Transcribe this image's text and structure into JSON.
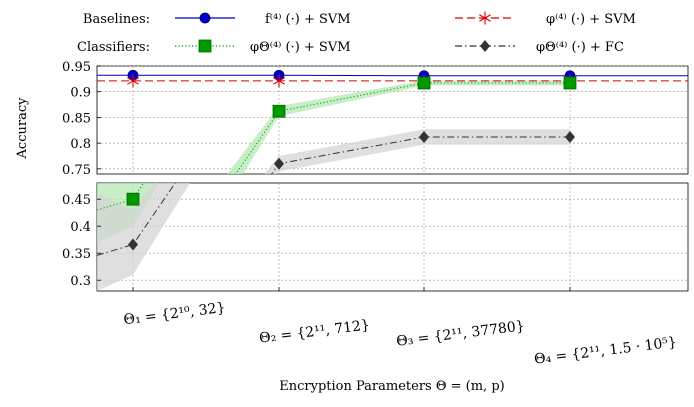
{
  "chart_data": {
    "type": "line",
    "ylabel": "Accuracy",
    "xlabel": "Encryption Parameters Θ = (m, p)",
    "legend": {
      "placement": "top",
      "row_labels": [
        "Baselines:",
        "Classifiers:"
      ],
      "entries": [
        {
          "series": 0,
          "label": "f⁽⁴⁾ (·) + SVM"
        },
        {
          "series": 1,
          "label": "φ⁽⁴⁾ (·) + SVM"
        },
        {
          "series": 2,
          "label": "φΘ⁽⁴⁾ (·) + SVM"
        },
        {
          "series": 3,
          "label": "φΘ⁽⁴⁾ (·) + FC"
        }
      ]
    },
    "categories": [
      "Θ₁ = {2¹⁰, 32}",
      "Θ₂ = {2¹¹, 712}",
      "Θ₃ = {2¹¹, 37780}",
      "Θ₄ = {2¹¹, 1.5 · 10⁵}"
    ],
    "axis_break": true,
    "upper_panel": {
      "ylim": [
        0.74,
        0.95
      ],
      "ticks": [
        0.75,
        0.8,
        0.85,
        0.9,
        0.95
      ]
    },
    "lower_panel": {
      "ylim": [
        0.28,
        0.48
      ],
      "ticks": [
        0.3,
        0.35,
        0.4,
        0.45
      ]
    },
    "grid": true,
    "series": [
      {
        "name": "f⁽⁴⁾ (·) + SVM",
        "color": "#0000cc",
        "marker": "circle",
        "line": "solid",
        "values": [
          0.932,
          0.932,
          0.931,
          0.931
        ]
      },
      {
        "name": "φ⁽⁴⁾ (·) + SVM",
        "color": "#dd0000",
        "marker": "star",
        "line": "dashed",
        "values": [
          0.921,
          0.921,
          0.921,
          0.921
        ]
      },
      {
        "name": "φΘ⁽⁴⁾ (·) + SVM",
        "color": "#009900",
        "marker": "square",
        "line": "dotted",
        "values": [
          0.45,
          0.862,
          0.917,
          0.917
        ],
        "band_color": "#b4e8b4",
        "band_lower": [
          0.4,
          0.852,
          0.912,
          0.912
        ],
        "band_upper": [
          0.5,
          0.872,
          0.922,
          0.922
        ]
      },
      {
        "name": "φΘ⁽⁴⁾ (·) + FC",
        "color": "#333333",
        "marker": "diamond",
        "line": "dashdot",
        "values": [
          0.366,
          0.76,
          0.812,
          0.812
        ],
        "band_color": "#d4d4d4",
        "band_lower": [
          0.31,
          0.745,
          0.797,
          0.797
        ],
        "band_upper": [
          0.43,
          0.775,
          0.827,
          0.827
        ]
      }
    ]
  }
}
